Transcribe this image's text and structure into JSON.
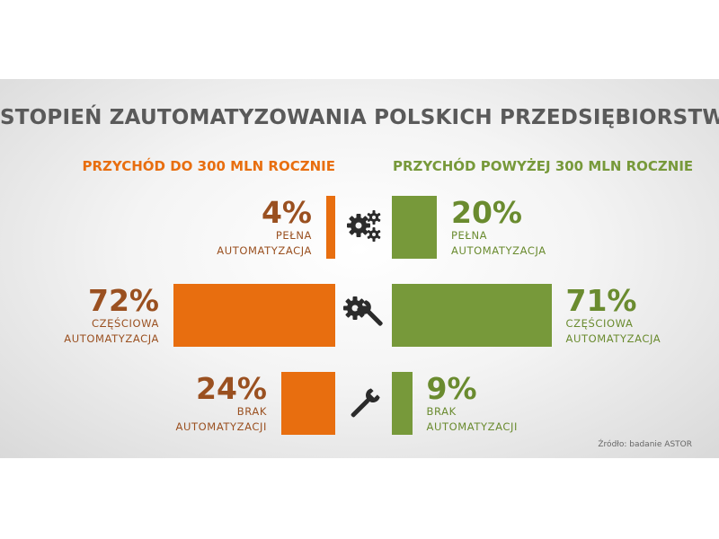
{
  "title": "STOPIEŃ ZAUTOMATYZOWANIA POLSKICH PRZEDSIĘBIORSTW",
  "source": "Źródło: badanie ASTOR",
  "colors": {
    "left": "#e86e0f",
    "left_text": "#9a5020",
    "right": "#77993a",
    "right_text": "#6a8b2f",
    "title": "#5a5a5a"
  },
  "chart_data": {
    "type": "bar",
    "units": "%",
    "categories": [
      {
        "value_label": "PEŁNA",
        "value_label2": "AUTOMATYZACJA",
        "icon": "gears-icon"
      },
      {
        "value_label": "CZĘŚCIOWA",
        "value_label2": "AUTOMATYZACJA",
        "icon": "gear-wrench-icon"
      },
      {
        "value_label": "BRAK",
        "value_label2": "AUTOMATYZACJI",
        "icon": "wrench-icon"
      }
    ],
    "series": [
      {
        "name": "PRZYCHÓD DO 300 MLN ROCZNIE",
        "values": [
          4,
          72,
          24
        ],
        "labels": [
          "4%",
          "72%",
          "24%"
        ]
      },
      {
        "name": "PRZYCHÓD POWYŻEJ 300 MLN ROCZNIE",
        "values": [
          20,
          71,
          9
        ],
        "labels": [
          "20%",
          "71%",
          "9%"
        ]
      }
    ]
  }
}
